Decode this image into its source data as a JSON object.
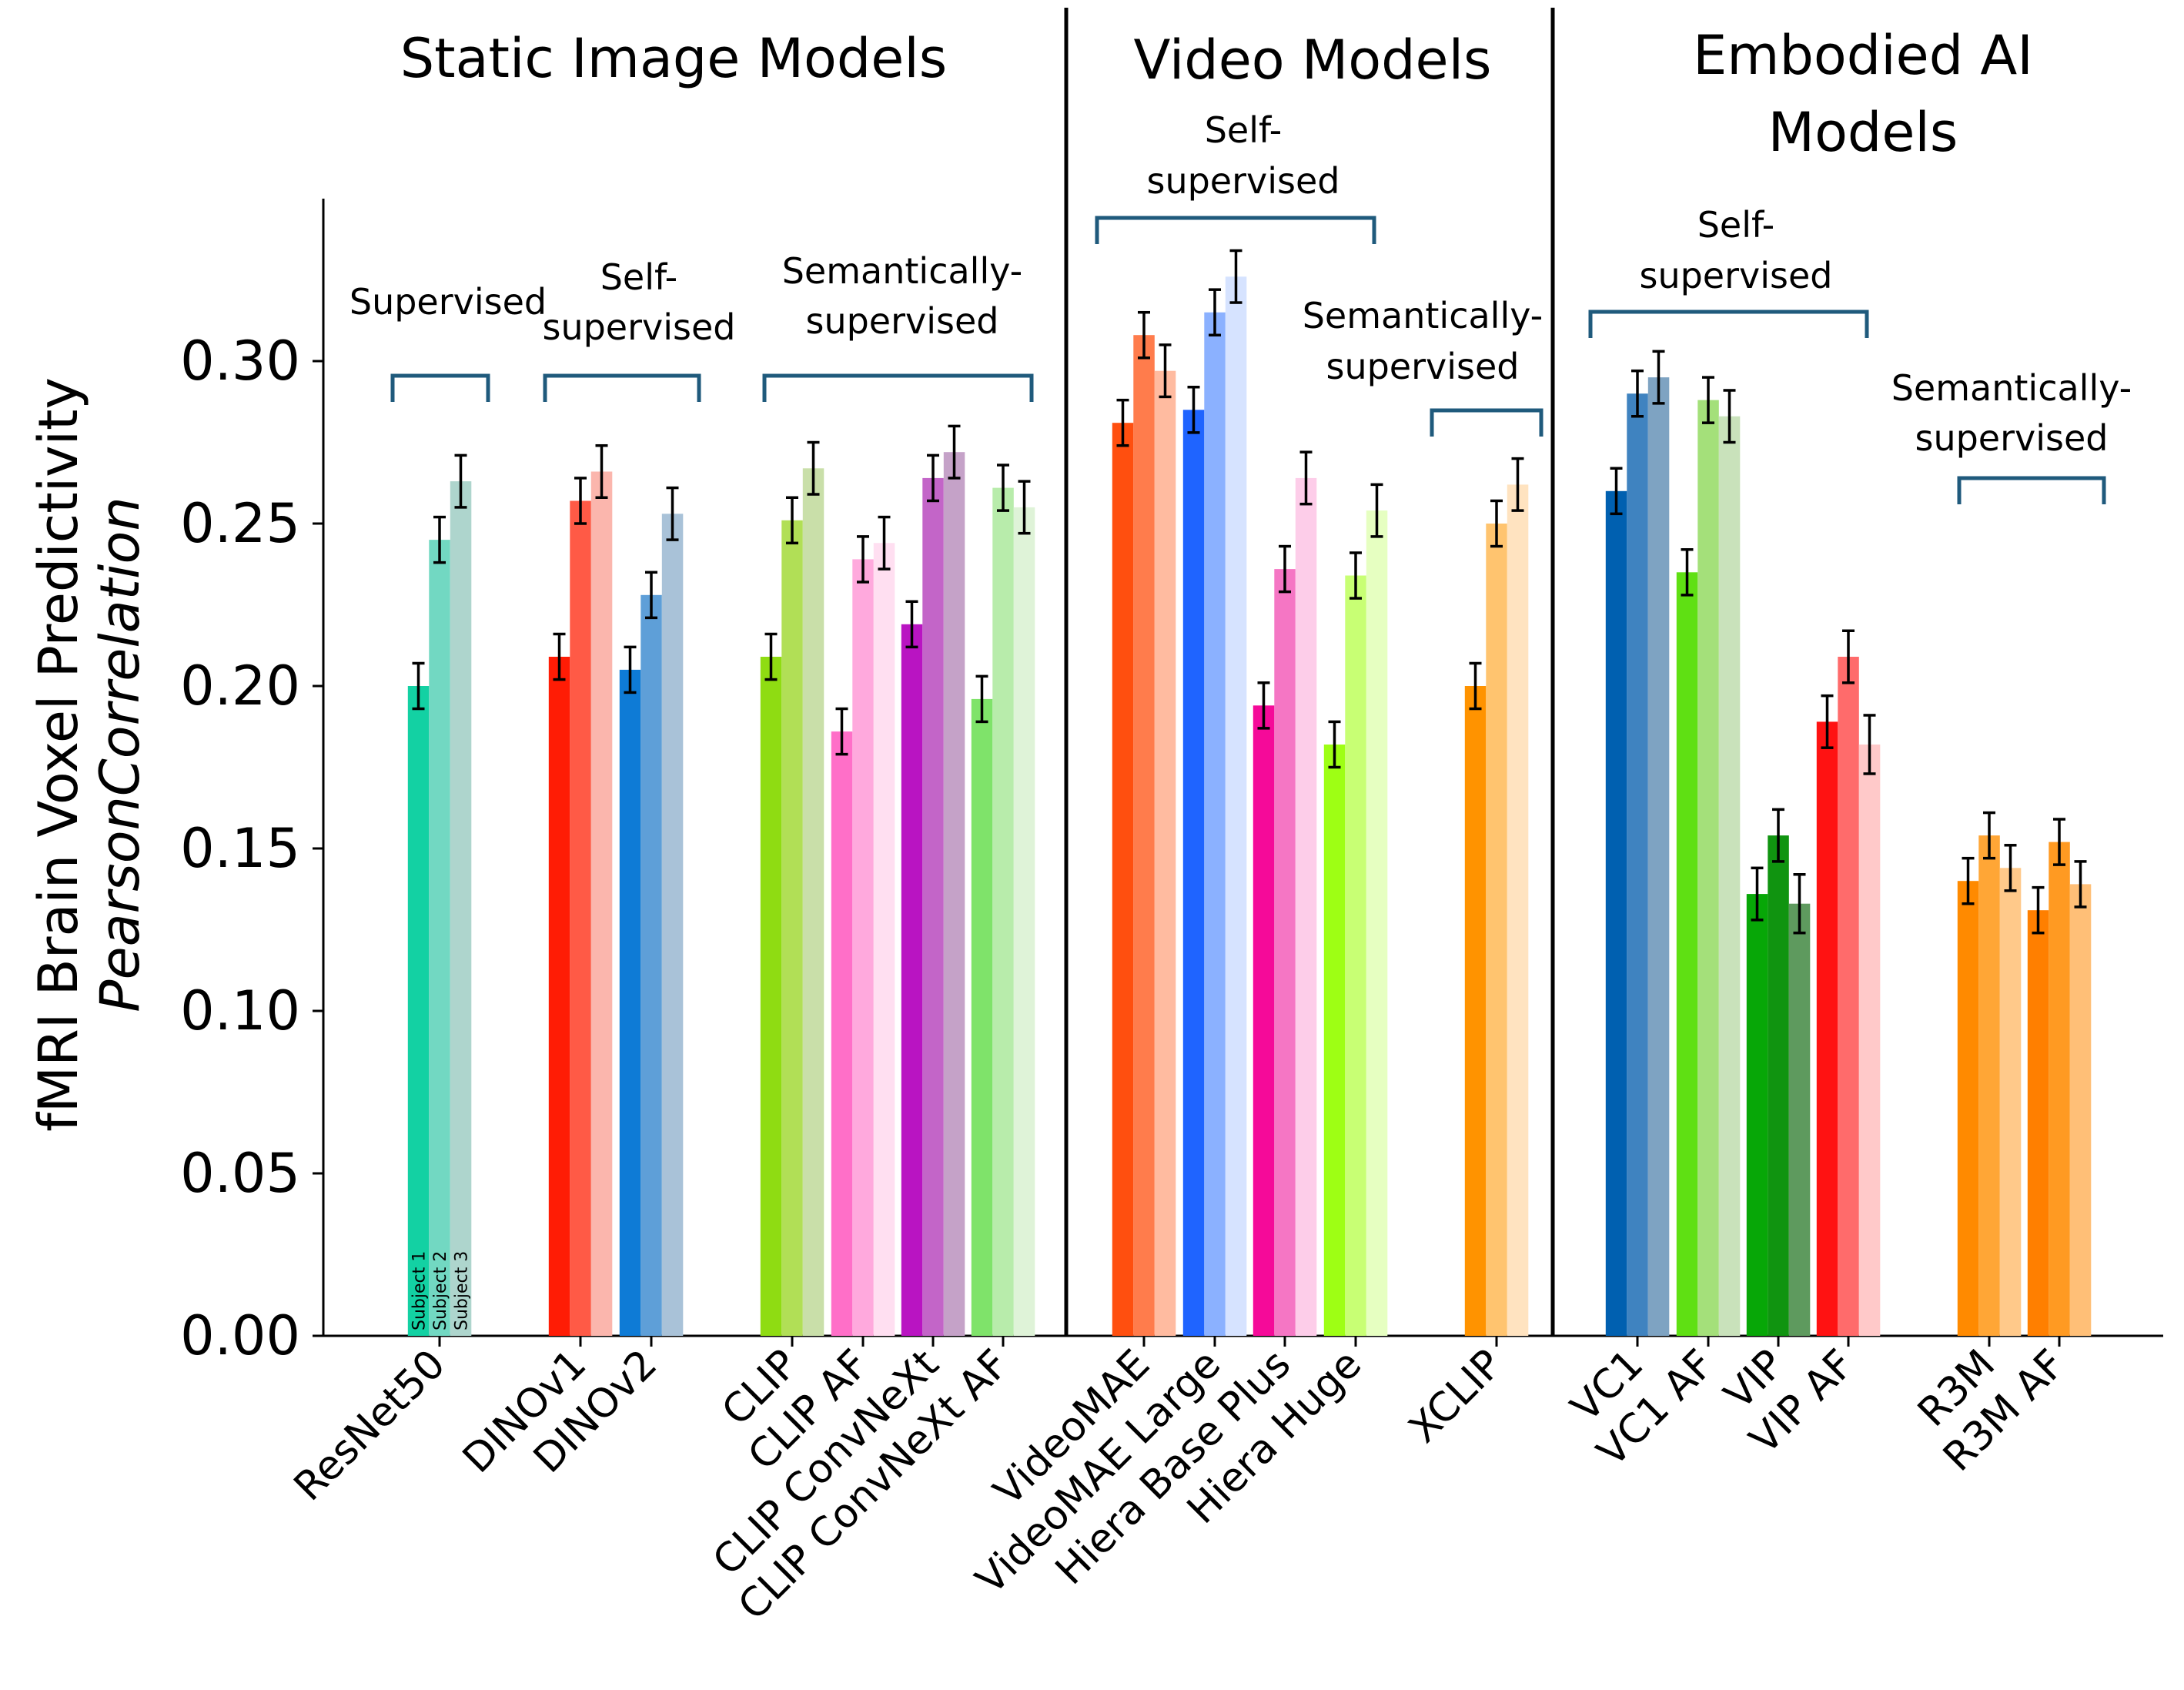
{
  "chart_data": {
    "type": "bar",
    "ylabel": "fMRI Brain Voxel Predictivity",
    "ylabel_sub": "PearsonCorrelation",
    "ylim": [
      0,
      0.345
    ],
    "yticks": [
      "0.00",
      "0.05",
      "0.10",
      "0.15",
      "0.20",
      "0.25",
      "0.30"
    ],
    "subject_labels": [
      "Subject 1",
      "Subject 2",
      "Subject 3"
    ],
    "sections": [
      {
        "title": "Static Image Models"
      },
      {
        "title": "Video Models"
      },
      {
        "title": "Embodied AI Models",
        "title_lines": [
          "Embodied AI",
          "Models"
        ]
      }
    ],
    "groups": [
      {
        "label": "Supervised",
        "lines": [
          "Supervised"
        ]
      },
      {
        "label": "Self-supervised",
        "lines": [
          "Self-",
          "supervised"
        ]
      },
      {
        "label": "Semantically-supervised",
        "lines": [
          "Semantically-",
          "supervised"
        ]
      },
      {
        "label": "Self-supervised",
        "lines": [
          "Self-",
          "supervised"
        ]
      },
      {
        "label": "Semantically-supervised",
        "lines": [
          "Semantically-",
          "supervised"
        ]
      },
      {
        "label": "Self-supervised",
        "lines": [
          "Self-",
          "supervised"
        ]
      },
      {
        "label": "Semantically-supervised",
        "lines": [
          "Semantically-",
          "supervised"
        ]
      }
    ],
    "categories": [
      {
        "name": "ResNet50",
        "values": [
          0.2,
          0.245,
          0.263
        ],
        "errors": [
          0.007,
          0.007,
          0.008
        ],
        "colors": [
          "#13d1a3",
          "#72d8c2",
          "#aed5cd"
        ]
      },
      {
        "name": "DINOv1",
        "values": [
          0.209,
          0.257,
          0.266
        ],
        "errors": [
          0.007,
          0.007,
          0.008
        ],
        "colors": [
          "#ff1c05",
          "#ff5a46",
          "#fbb6ad"
        ]
      },
      {
        "name": "DINOv2",
        "values": [
          0.205,
          0.228,
          0.253
        ],
        "errors": [
          0.007,
          0.007,
          0.008
        ],
        "colors": [
          "#0e7bd6",
          "#5e9fd8",
          "#a9c2d8"
        ]
      },
      {
        "name": "CLIP",
        "values": [
          0.209,
          0.251,
          0.267
        ],
        "errors": [
          0.007,
          0.007,
          0.008
        ],
        "colors": [
          "#8fdc12",
          "#b1df56",
          "#c9dfa9"
        ]
      },
      {
        "name": "CLIP AF",
        "values": [
          0.186,
          0.239,
          0.244
        ],
        "errors": [
          0.007,
          0.007,
          0.008
        ],
        "colors": [
          "#ff6fc8",
          "#ffa9dd",
          "#ffdff1"
        ]
      },
      {
        "name": "CLIP ConvNeXt",
        "values": [
          0.219,
          0.264,
          0.272
        ],
        "errors": [
          0.007,
          0.007,
          0.008
        ],
        "colors": [
          "#b914c2",
          "#c365c8",
          "#c5a2c8"
        ]
      },
      {
        "name": "CLIP ConvNeXt AF",
        "values": [
          0.196,
          0.261,
          0.255
        ],
        "errors": [
          0.007,
          0.007,
          0.008
        ],
        "colors": [
          "#7fe36a",
          "#b8ecab",
          "#dff3d8"
        ]
      },
      {
        "name": "VideoMAE",
        "values": [
          0.281,
          0.308,
          0.297
        ],
        "errors": [
          0.007,
          0.007,
          0.008
        ],
        "colors": [
          "#ff4f0f",
          "#ff7c4c",
          "#ffbba0"
        ]
      },
      {
        "name": "VideoMAE Large",
        "values": [
          0.285,
          0.315,
          0.326
        ],
        "errors": [
          0.007,
          0.007,
          0.008
        ],
        "colors": [
          "#1f64ff",
          "#8bb1ff",
          "#d6e3ff"
        ]
      },
      {
        "name": "Hiera Base Plus",
        "values": [
          0.194,
          0.236,
          0.264
        ],
        "errors": [
          0.007,
          0.007,
          0.008
        ],
        "colors": [
          "#f50a99",
          "#f576c4",
          "#fdcde9"
        ]
      },
      {
        "name": "Hiera Huge",
        "values": [
          0.182,
          0.234,
          0.254
        ],
        "errors": [
          0.007,
          0.007,
          0.008
        ],
        "colors": [
          "#9eff14",
          "#c8ff74",
          "#e6ffc1"
        ]
      },
      {
        "name": "XCLIP",
        "values": [
          0.2,
          0.25,
          0.262
        ],
        "errors": [
          0.007,
          0.007,
          0.008
        ],
        "colors": [
          "#ff9300",
          "#ffc46f",
          "#ffe3c0"
        ]
      },
      {
        "name": "VC1",
        "values": [
          0.26,
          0.29,
          0.295
        ],
        "errors": [
          0.007,
          0.007,
          0.008
        ],
        "colors": [
          "#0060b0",
          "#3f83c0",
          "#7ea3c2"
        ]
      },
      {
        "name": "VC1 AF",
        "values": [
          0.235,
          0.288,
          0.283
        ],
        "errors": [
          0.007,
          0.007,
          0.008
        ],
        "colors": [
          "#5fe013",
          "#a4e07a",
          "#c9e2bb"
        ]
      },
      {
        "name": "VIP",
        "values": [
          0.136,
          0.154,
          0.133
        ],
        "errors": [
          0.008,
          0.008,
          0.009
        ],
        "colors": [
          "#07a707",
          "#109410",
          "#5e9a5e"
        ]
      },
      {
        "name": "VIP AF",
        "values": [
          0.189,
          0.209,
          0.182
        ],
        "errors": [
          0.008,
          0.008,
          0.009
        ],
        "colors": [
          "#ff1212",
          "#ff6b6b",
          "#ffc9c9"
        ]
      },
      {
        "name": "R3M",
        "values": [
          0.14,
          0.154,
          0.144
        ],
        "errors": [
          0.007,
          0.007,
          0.007
        ],
        "colors": [
          "#ff8a00",
          "#ffa636",
          "#ffc98a"
        ]
      },
      {
        "name": "R3M AF",
        "values": [
          0.131,
          0.152,
          0.139
        ],
        "errors": [
          0.007,
          0.007,
          0.007
        ],
        "colors": [
          "#ff7f00",
          "#ff9a22",
          "#ffbf77"
        ]
      }
    ]
  }
}
